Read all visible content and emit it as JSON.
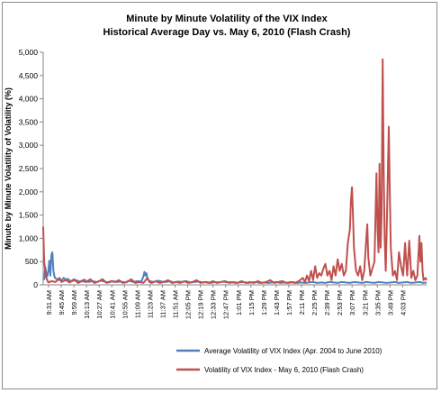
{
  "chart_data": {
    "type": "line",
    "title": "Minute by Minute Volatility  of the VIX Index",
    "subtitle": "Historical Average Day vs. May 6, 2010 (Flash  Crash)",
    "xlabel": "",
    "ylabel": "Minute by Minute Volatility of Volatility (%)",
    "ylim": [
      0,
      5000
    ],
    "yticks": [
      "0",
      "500",
      "1,000",
      "1,500",
      "2,000",
      "2,500",
      "3,000",
      "3,500",
      "4,000",
      "4,500",
      "5,000"
    ],
    "ytick_values": [
      0,
      500,
      1000,
      1500,
      2000,
      2500,
      3000,
      3500,
      4000,
      4500,
      5000
    ],
    "xlim": [
      0,
      375
    ],
    "xtick_labels": [
      "9:31 AM",
      "9:45 AM",
      "9:59 AM",
      "10:13 AM",
      "10:27 AM",
      "10:41 AM",
      "10:55 AM",
      "11:09 AM",
      "11:23 AM",
      "11:37 AM",
      "11:51 AM",
      "12:05 PM",
      "12:19 PM",
      "12:33 PM",
      "12:47 PM",
      "1:01 PM",
      "1:15 PM",
      "1:29 PM",
      "1:43 PM",
      "1:57 PM",
      "2:11 PM",
      "2:25 PM",
      "2:39 PM",
      "2:53 PM",
      "3:07 PM",
      "3:21 PM",
      "3:35 PM",
      "3:49 PM",
      "4:03 PM"
    ],
    "xtick_positions": [
      0,
      14,
      28,
      42,
      56,
      70,
      84,
      98,
      112,
      126,
      140,
      154,
      168,
      182,
      196,
      210,
      224,
      238,
      252,
      266,
      280,
      294,
      308,
      322,
      336,
      350,
      364,
      378,
      392
    ],
    "grid": false,
    "legend_position": "bottom",
    "series": [
      {
        "name": "Average Volatility of VIX Index (Apr. 2004 to June 2010)",
        "color": "#4f81bd",
        "points": [
          [
            0,
            150
          ],
          [
            1,
            120
          ],
          [
            2,
            380
          ],
          [
            3,
            250
          ],
          [
            4,
            180
          ],
          [
            5,
            300
          ],
          [
            6,
            520
          ],
          [
            7,
            200
          ],
          [
            8,
            650
          ],
          [
            9,
            700
          ],
          [
            10,
            300
          ],
          [
            11,
            180
          ],
          [
            12,
            140
          ],
          [
            14,
            120
          ],
          [
            16,
            100
          ],
          [
            18,
            90
          ],
          [
            20,
            150
          ],
          [
            22,
            110
          ],
          [
            24,
            130
          ],
          [
            26,
            90
          ],
          [
            28,
            80
          ],
          [
            32,
            100
          ],
          [
            36,
            70
          ],
          [
            40,
            110
          ],
          [
            44,
            60
          ],
          [
            48,
            80
          ],
          [
            52,
            60
          ],
          [
            56,
            90
          ],
          [
            60,
            70
          ],
          [
            64,
            50
          ],
          [
            68,
            80
          ],
          [
            72,
            60
          ],
          [
            76,
            70
          ],
          [
            80,
            50
          ],
          [
            84,
            90
          ],
          [
            88,
            60
          ],
          [
            92,
            80
          ],
          [
            96,
            70
          ],
          [
            98,
            180
          ],
          [
            99,
            280
          ],
          [
            100,
            200
          ],
          [
            101,
            250
          ],
          [
            102,
            120
          ],
          [
            104,
            80
          ],
          [
            108,
            60
          ],
          [
            112,
            90
          ],
          [
            116,
            70
          ],
          [
            120,
            60
          ],
          [
            124,
            80
          ],
          [
            128,
            50
          ],
          [
            132,
            70
          ],
          [
            136,
            60
          ],
          [
            140,
            80
          ],
          [
            144,
            50
          ],
          [
            148,
            60
          ],
          [
            152,
            70
          ],
          [
            156,
            50
          ],
          [
            160,
            60
          ],
          [
            164,
            40
          ],
          [
            168,
            60
          ],
          [
            172,
            50
          ],
          [
            176,
            70
          ],
          [
            180,
            50
          ],
          [
            184,
            60
          ],
          [
            188,
            40
          ],
          [
            192,
            50
          ],
          [
            196,
            60
          ],
          [
            200,
            40
          ],
          [
            204,
            50
          ],
          [
            208,
            60
          ],
          [
            212,
            40
          ],
          [
            216,
            50
          ],
          [
            220,
            40
          ],
          [
            224,
            50
          ],
          [
            228,
            60
          ],
          [
            232,
            40
          ],
          [
            236,
            50
          ],
          [
            240,
            40
          ],
          [
            244,
            60
          ],
          [
            248,
            40
          ],
          [
            252,
            50
          ],
          [
            256,
            40
          ],
          [
            260,
            50
          ],
          [
            264,
            60
          ],
          [
            268,
            40
          ],
          [
            272,
            50
          ],
          [
            276,
            40
          ],
          [
            280,
            60
          ],
          [
            284,
            50
          ],
          [
            288,
            40
          ],
          [
            292,
            60
          ],
          [
            296,
            50
          ],
          [
            300,
            40
          ],
          [
            304,
            60
          ],
          [
            308,
            50
          ],
          [
            312,
            40
          ],
          [
            316,
            60
          ],
          [
            320,
            50
          ],
          [
            324,
            40
          ],
          [
            328,
            60
          ],
          [
            332,
            50
          ],
          [
            336,
            40
          ],
          [
            340,
            50
          ],
          [
            344,
            60
          ],
          [
            348,
            40
          ],
          [
            352,
            50
          ],
          [
            356,
            60
          ],
          [
            360,
            40
          ],
          [
            364,
            50
          ],
          [
            368,
            60
          ],
          [
            372,
            40
          ],
          [
            375,
            50
          ]
        ]
      },
      {
        "name": "Volatility of VIX Index - May 6, 2010 (Flash Crash)",
        "color": "#c0504d",
        "points": [
          [
            0,
            1250
          ],
          [
            1,
            500
          ],
          [
            2,
            300
          ],
          [
            3,
            150
          ],
          [
            4,
            100
          ],
          [
            5,
            50
          ],
          [
            8,
            80
          ],
          [
            12,
            60
          ],
          [
            16,
            150
          ],
          [
            18,
            60
          ],
          [
            22,
            100
          ],
          [
            26,
            50
          ],
          [
            30,
            120
          ],
          [
            34,
            40
          ],
          [
            38,
            80
          ],
          [
            42,
            60
          ],
          [
            46,
            120
          ],
          [
            50,
            40
          ],
          [
            54,
            70
          ],
          [
            58,
            120
          ],
          [
            62,
            40
          ],
          [
            66,
            80
          ],
          [
            70,
            60
          ],
          [
            74,
            100
          ],
          [
            78,
            40
          ],
          [
            82,
            60
          ],
          [
            86,
            120
          ],
          [
            90,
            40
          ],
          [
            94,
            60
          ],
          [
            98,
            40
          ],
          [
            102,
            150
          ],
          [
            104,
            60
          ],
          [
            106,
            40
          ],
          [
            110,
            80
          ],
          [
            114,
            40
          ],
          [
            118,
            60
          ],
          [
            122,
            100
          ],
          [
            126,
            40
          ],
          [
            130,
            60
          ],
          [
            134,
            40
          ],
          [
            138,
            80
          ],
          [
            142,
            40
          ],
          [
            146,
            60
          ],
          [
            150,
            100
          ],
          [
            154,
            40
          ],
          [
            158,
            60
          ],
          [
            162,
            40
          ],
          [
            166,
            80
          ],
          [
            170,
            40
          ],
          [
            174,
            60
          ],
          [
            178,
            80
          ],
          [
            182,
            40
          ],
          [
            186,
            60
          ],
          [
            190,
            40
          ],
          [
            194,
            80
          ],
          [
            198,
            40
          ],
          [
            202,
            60
          ],
          [
            206,
            40
          ],
          [
            210,
            80
          ],
          [
            214,
            40
          ],
          [
            218,
            60
          ],
          [
            222,
            100
          ],
          [
            226,
            40
          ],
          [
            230,
            60
          ],
          [
            234,
            80
          ],
          [
            238,
            40
          ],
          [
            242,
            60
          ],
          [
            246,
            40
          ],
          [
            250,
            80
          ],
          [
            254,
            150
          ],
          [
            256,
            60
          ],
          [
            258,
            200
          ],
          [
            260,
            80
          ],
          [
            262,
            300
          ],
          [
            264,
            100
          ],
          [
            266,
            400
          ],
          [
            268,
            150
          ],
          [
            270,
            250
          ],
          [
            272,
            200
          ],
          [
            274,
            350
          ],
          [
            276,
            450
          ],
          [
            278,
            200
          ],
          [
            280,
            300
          ],
          [
            282,
            100
          ],
          [
            284,
            400
          ],
          [
            286,
            200
          ],
          [
            288,
            550
          ],
          [
            290,
            300
          ],
          [
            292,
            450
          ],
          [
            294,
            200
          ],
          [
            296,
            300
          ],
          [
            298,
            900
          ],
          [
            300,
            1200
          ],
          [
            301,
            1800
          ],
          [
            302,
            2100
          ],
          [
            303,
            1500
          ],
          [
            304,
            800
          ],
          [
            306,
            300
          ],
          [
            308,
            200
          ],
          [
            310,
            400
          ],
          [
            312,
            100
          ],
          [
            314,
            300
          ],
          [
            316,
            1000
          ],
          [
            317,
            1300
          ],
          [
            318,
            600
          ],
          [
            320,
            200
          ],
          [
            322,
            350
          ],
          [
            324,
            500
          ],
          [
            326,
            2400
          ],
          [
            327,
            1200
          ],
          [
            328,
            700
          ],
          [
            329,
            2600
          ],
          [
            330,
            800
          ],
          [
            331,
            1500
          ],
          [
            332,
            4850
          ],
          [
            333,
            2500
          ],
          [
            334,
            1000
          ],
          [
            335,
            300
          ],
          [
            336,
            1200
          ],
          [
            338,
            3400
          ],
          [
            339,
            2000
          ],
          [
            340,
            800
          ],
          [
            342,
            200
          ],
          [
            344,
            300
          ],
          [
            346,
            100
          ],
          [
            348,
            700
          ],
          [
            350,
            400
          ],
          [
            352,
            200
          ],
          [
            354,
            900
          ],
          [
            355,
            500
          ],
          [
            356,
            200
          ],
          [
            358,
            950
          ],
          [
            359,
            600
          ],
          [
            360,
            150
          ],
          [
            362,
            300
          ],
          [
            364,
            100
          ],
          [
            366,
            200
          ],
          [
            368,
            1050
          ],
          [
            369,
            500
          ],
          [
            370,
            900
          ],
          [
            371,
            300
          ],
          [
            372,
            100
          ],
          [
            374,
            150
          ],
          [
            375,
            100
          ]
        ]
      }
    ]
  }
}
